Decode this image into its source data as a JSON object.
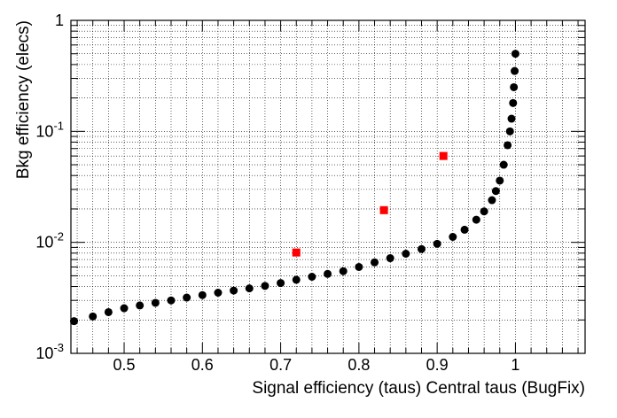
{
  "chart_data": {
    "type": "scatter",
    "title": "",
    "xlabel": "Signal efficiency (taus) Central taus (BugFix)",
    "ylabel": "Bkg efficiency (elecs)",
    "xlim": [
      0.432,
      1.089
    ],
    "ylim": [
      0.001,
      1
    ],
    "yscale": "log",
    "grid": true,
    "x_ticks": [
      {
        "value": 0.5,
        "label": "0.5"
      },
      {
        "value": 0.6,
        "label": "0.6"
      },
      {
        "value": 0.7,
        "label": "0.7"
      },
      {
        "value": 0.8,
        "label": "0.8"
      },
      {
        "value": 0.9,
        "label": "0.9"
      },
      {
        "value": 1.0,
        "label": "1"
      }
    ],
    "y_ticks": [
      {
        "value": 1,
        "base": "1",
        "exp": ""
      },
      {
        "value": 0.1,
        "base": "10",
        "exp": "-1"
      },
      {
        "value": 0.01,
        "base": "10",
        "exp": "-2"
      },
      {
        "value": 0.001,
        "base": "10",
        "exp": "-3"
      }
    ],
    "series": [
      {
        "color": "#000000",
        "marker": "circle",
        "x": [
          0.436,
          0.46,
          0.48,
          0.5,
          0.52,
          0.54,
          0.56,
          0.58,
          0.6,
          0.62,
          0.64,
          0.66,
          0.68,
          0.7,
          0.72,
          0.74,
          0.76,
          0.78,
          0.8,
          0.82,
          0.84,
          0.86,
          0.88,
          0.9,
          0.92,
          0.935,
          0.95,
          0.96,
          0.97,
          0.975,
          0.98,
          0.985,
          0.99,
          0.993,
          0.995,
          0.997,
          0.998,
          0.999,
          1.0
        ],
        "y": [
          0.00195,
          0.00215,
          0.00235,
          0.00255,
          0.0027,
          0.00285,
          0.003,
          0.00318,
          0.00335,
          0.00352,
          0.00368,
          0.00385,
          0.00405,
          0.0043,
          0.0046,
          0.0049,
          0.0052,
          0.0055,
          0.006,
          0.0066,
          0.0072,
          0.0079,
          0.0087,
          0.0097,
          0.0112,
          0.013,
          0.016,
          0.019,
          0.024,
          0.029,
          0.036,
          0.05,
          0.075,
          0.1,
          0.13,
          0.18,
          0.25,
          0.35,
          0.5
        ]
      },
      {
        "color": "#ff0000",
        "marker": "square",
        "x": [
          0.72,
          0.832,
          0.908
        ],
        "y": [
          0.0081,
          0.0195,
          0.06
        ]
      }
    ]
  }
}
